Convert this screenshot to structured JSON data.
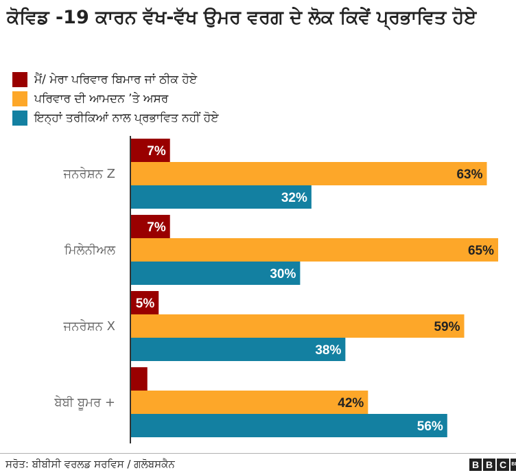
{
  "title": "ਕੋਵਿਡ -19 ਕਾਰਨ ਵੱਖ-ਵੱਖ ਉਮਰ ਵਰਗ ਦੇ ਲੋਕ ਕਿਵੇਂ ਪ੍ਰਭਾਵਿਤ ਹੋਏ",
  "legend": [
    {
      "label": "ਮੈਂ/ ਮੇਰਾ ਪਰਿਵਾਰ ਬਿਮਾਰ ਜਾਂ ਠੀਕ ਹੋਏ",
      "color": "#990000"
    },
    {
      "label": "ਪਰਿਵਾਰ ਦੀ ਆਮਦਨ ’ਤੇ ਅਸਰ",
      "color": "#FDA729"
    },
    {
      "label": "ਇਨ੍ਹਾਂ ਤਰੀਕਿਆਂ ਨਾਲ ਪ੍ਰਭਾਵਿਤ ਨਹੀਂ ਹੋਏ",
      "color": "#1380A1"
    }
  ],
  "chart_data": {
    "type": "bar",
    "orientation": "horizontal",
    "title": "ਕੋਵਿਡ -19 ਕਾਰਨ ਵੱਖ-ਵੱਖ ਉਮਰ ਵਰਗ ਦੇ ਲੋਕ ਕਿਵੇਂ ਪ੍ਰਭਾਵਿਤ ਹੋਏ",
    "categories": [
      "ਜਨਰੇਸ਼ਨ Z",
      "ਮਿਲੇਨੀਅਲ",
      "ਜਨਰੇਸ਼ਨ X",
      "ਬੇਬੀ ਬੂਮਰ +"
    ],
    "series": [
      {
        "name": "ਮੈਂ/ ਮੇਰਾ ਪਰਿਵਾਰ ਬਿਮਾਰ ਜਾਂ ਠੀਕ ਹੋਏ",
        "color": "#990000",
        "values": [
          7,
          7,
          5,
          3
        ],
        "labels": [
          "7%",
          "7%",
          "5%",
          ""
        ]
      },
      {
        "name": "ਪਰਿਵਾਰ ਦੀ ਆਮਦਨ ’ਤੇ ਅਸਰ",
        "color": "#FDA729",
        "values": [
          63,
          65,
          59,
          42
        ],
        "labels": [
          "63%",
          "65%",
          "59%",
          "42%"
        ]
      },
      {
        "name": "ਇਨ੍ਹਾਂ ਤਰੀਕਿਆਂ ਨਾਲ ਪ੍ਰਭਾਵਿਤ ਨਹੀਂ ਹੋਏ",
        "color": "#1380A1",
        "values": [
          32,
          30,
          38,
          56
        ],
        "labels": [
          "32%",
          "30%",
          "38%",
          "56%"
        ]
      }
    ],
    "xlim": [
      0,
      65
    ],
    "xlabel": "",
    "ylabel": "",
    "grid": false,
    "legend_position": "top-left"
  },
  "footer": {
    "source": "ਸਰੋਤ: ਬੀਬੀਸੀ ਵਰਲਡ ਸਰਵਿਸ / ਗਲੋਬਸਕੈਨ",
    "logo": [
      "B",
      "B",
      "C"
    ],
    "logo_small": "BBC"
  }
}
